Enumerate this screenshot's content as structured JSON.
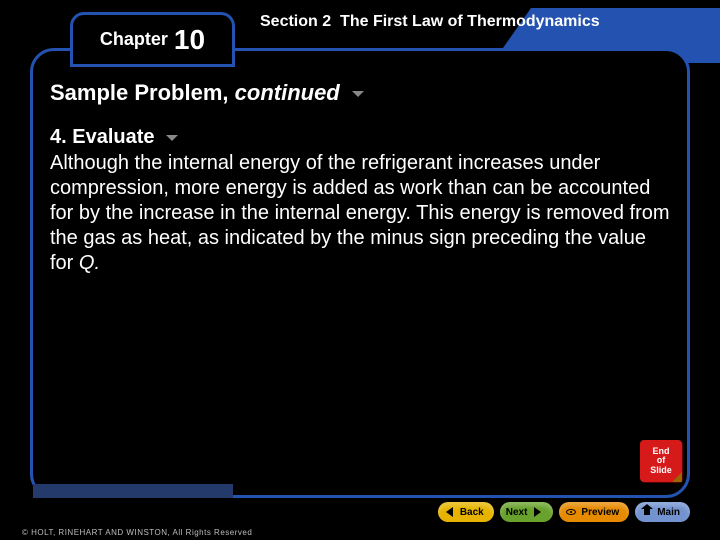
{
  "colors": {
    "frame_border": "#2352b0",
    "background": "#000000",
    "text": "#ffffff",
    "section_bg": "#2352b0",
    "wedge": "#233a6b",
    "end_slide_bg": "#d61a1a",
    "btn_back": "#e6b400",
    "btn_next": "#68a22c",
    "btn_preview": "#e68a00",
    "btn_main": "#7293cf",
    "copyright_text": "#bdbdbd",
    "copy_icon_bg": "#106830"
  },
  "header": {
    "chapter_word": "Chapter",
    "chapter_number": "10",
    "section_label": "Section 2",
    "section_title": "The First Law of Thermodynamics"
  },
  "title": {
    "main": "Sample Problem,",
    "cont": "continued"
  },
  "step": {
    "number": "4.",
    "name": "Evaluate"
  },
  "body": {
    "line": "Although the internal energy of the refrigerant increases under compression, more energy is added as work than can be accounted for by the increase in the internal energy. This energy is removed from the gas as heat, as indicated by the minus sign preceding the value for ",
    "variable": "Q.",
    "after": ""
  },
  "end_slide": {
    "l1": "End",
    "l2": "of",
    "l3": "Slide"
  },
  "nav": {
    "back": "Back",
    "next": "Next",
    "preview": "Preview",
    "main": "Main"
  },
  "copyright": "© HOLT, RINEHART AND WINSTON, All Rights Reserved"
}
